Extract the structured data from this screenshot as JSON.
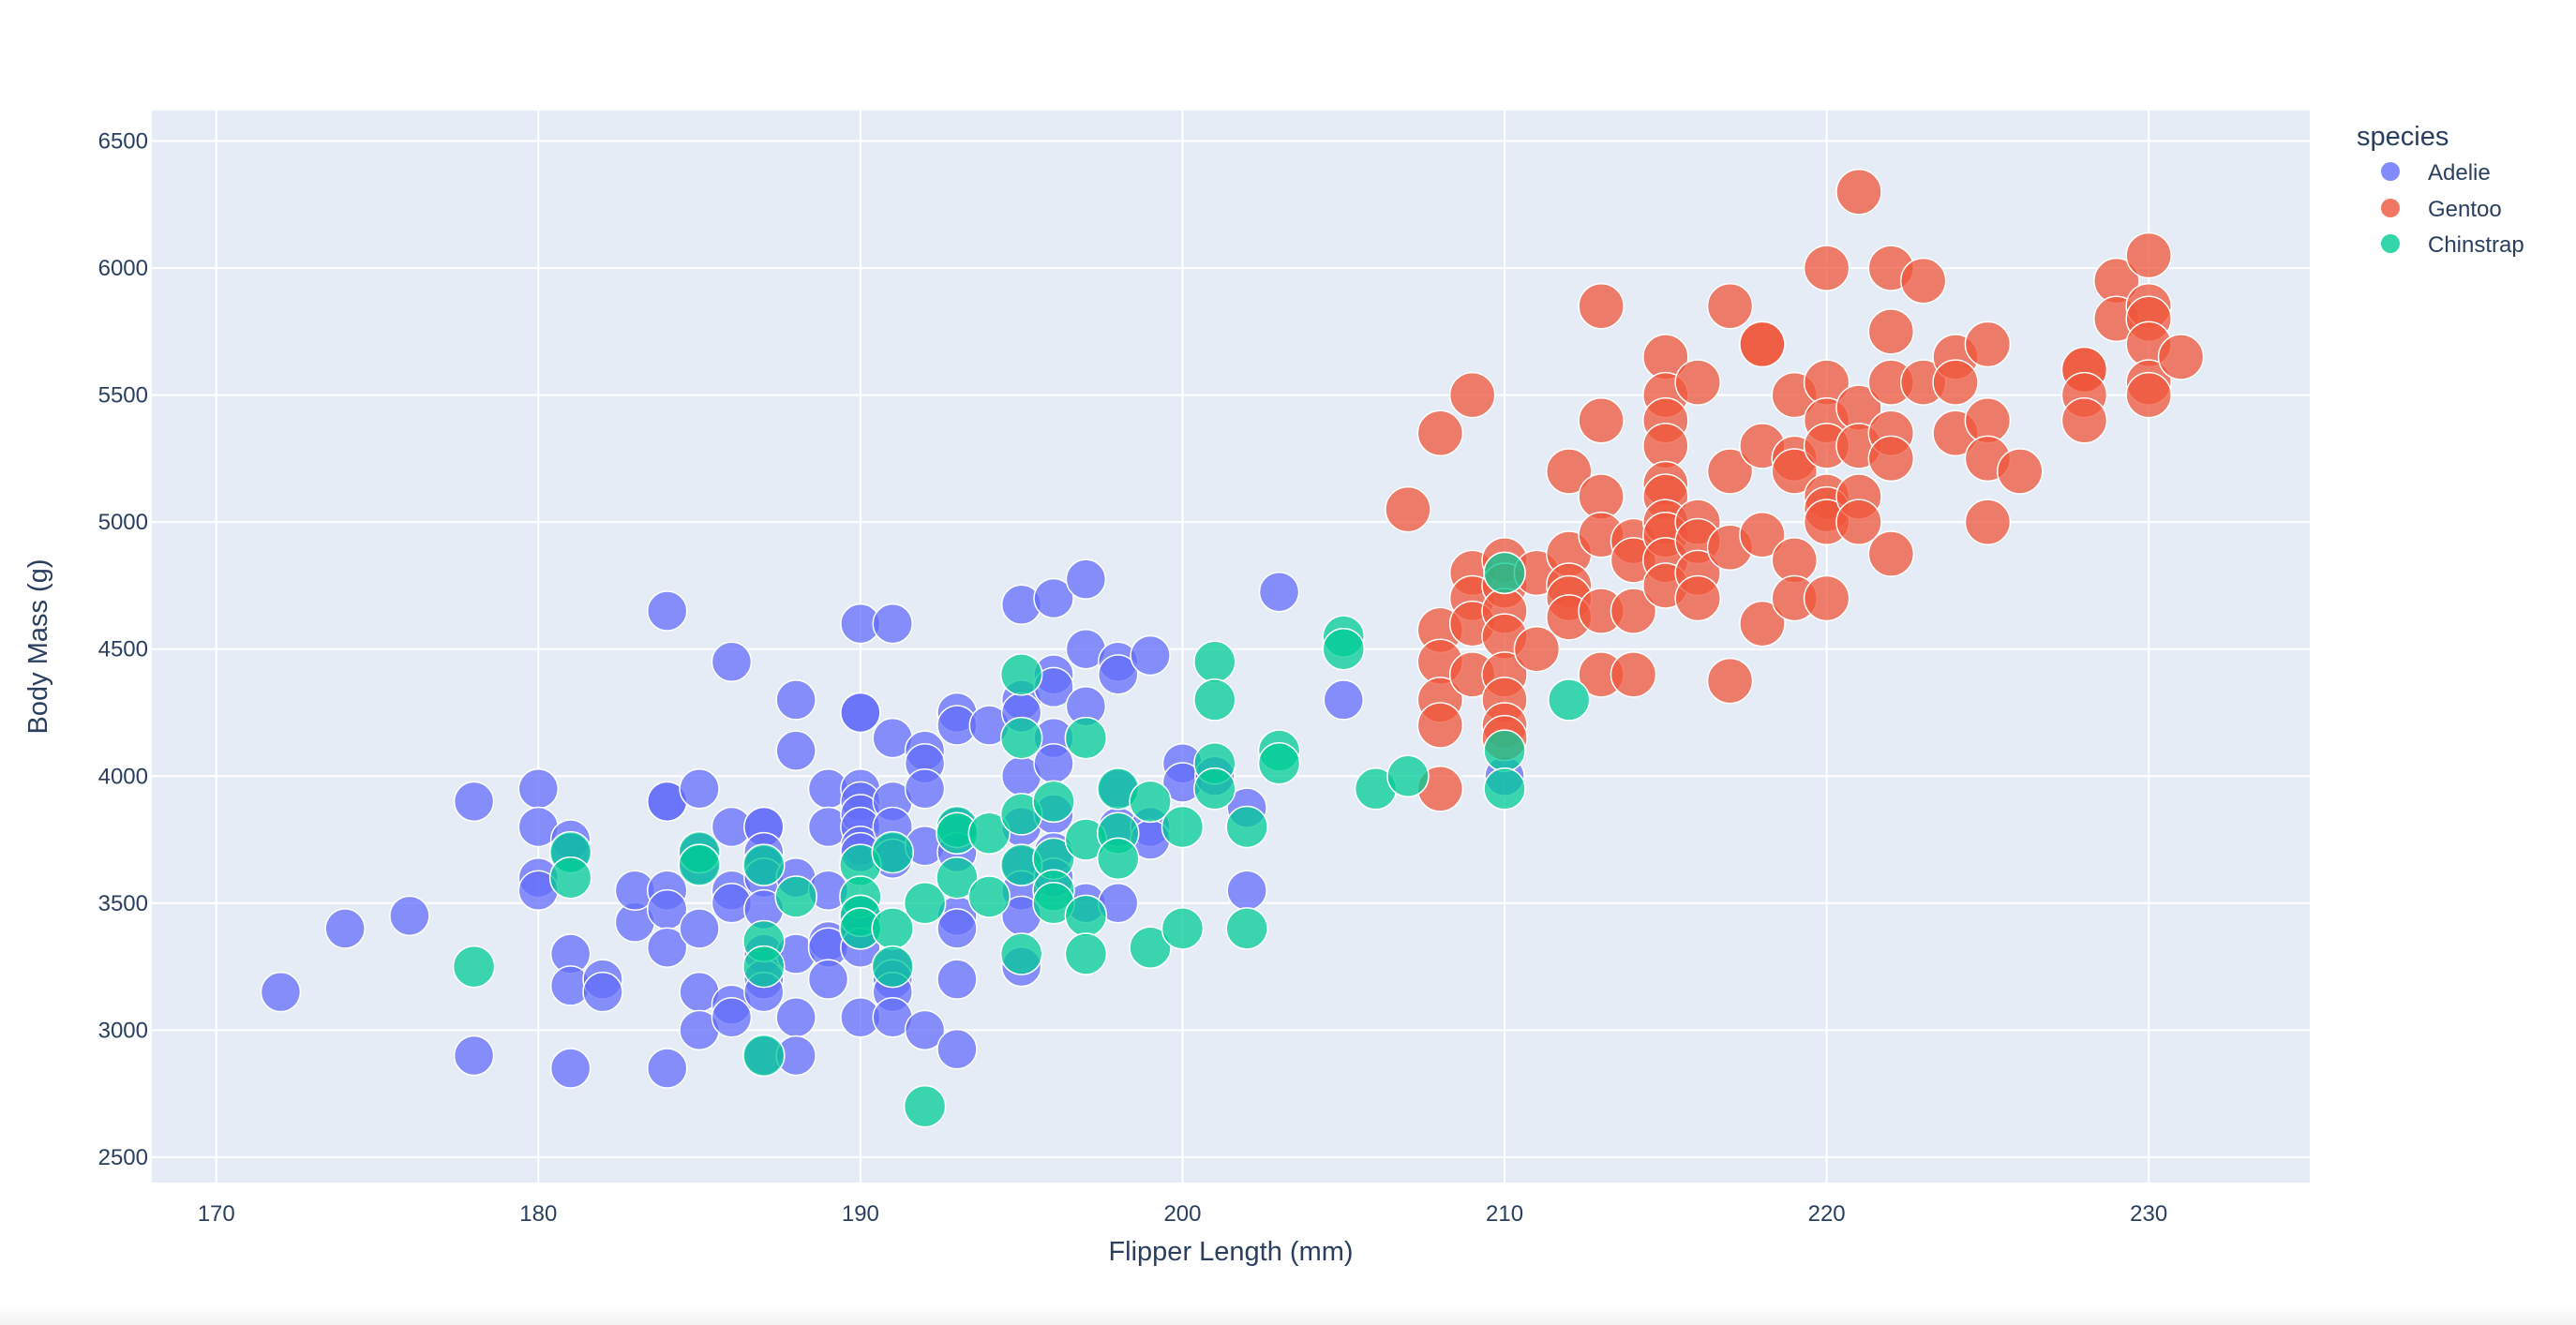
{
  "chart_data": {
    "type": "scatter",
    "title": "",
    "xlabel": "Flipper Length (mm)",
    "ylabel": "Body Mass (g)",
    "xlim": [
      168,
      235
    ],
    "ylim": [
      2400,
      6620
    ],
    "xticks": [
      "170",
      "180",
      "190",
      "200",
      "210",
      "220",
      "230"
    ],
    "yticks": [
      "2500",
      "3000",
      "3500",
      "4000",
      "4500",
      "5000",
      "5500",
      "6000",
      "6500"
    ],
    "grid": true,
    "legend": {
      "title": "species",
      "placement": "top-right outside"
    },
    "marker_size_note": "marker size varies with an additional variable; larger markers for Gentoo",
    "series": [
      {
        "name": "Adelie",
        "color": "#636efa",
        "points": [
          [
            172,
            3150
          ],
          [
            174,
            3400
          ],
          [
            176,
            3450
          ],
          [
            178,
            3900
          ],
          [
            178,
            2900
          ],
          [
            180,
            3950
          ],
          [
            180,
            3800
          ],
          [
            180,
            3600
          ],
          [
            180,
            3550
          ],
          [
            181,
            3750
          ],
          [
            181,
            3700
          ],
          [
            181,
            3300
          ],
          [
            181,
            3175
          ],
          [
            181,
            2850
          ],
          [
            182,
            3200
          ],
          [
            182,
            3150
          ],
          [
            183,
            3425
          ],
          [
            183,
            3550
          ],
          [
            184,
            4650
          ],
          [
            184,
            3900
          ],
          [
            184,
            3900
          ],
          [
            184,
            3550
          ],
          [
            184,
            3475
          ],
          [
            184,
            3325
          ],
          [
            184,
            2850
          ],
          [
            185,
            3950
          ],
          [
            185,
            3700
          ],
          [
            185,
            3650
          ],
          [
            185,
            3400
          ],
          [
            185,
            3150
          ],
          [
            185,
            3000
          ],
          [
            186,
            4450
          ],
          [
            186,
            3800
          ],
          [
            186,
            3550
          ],
          [
            186,
            3500
          ],
          [
            186,
            3100
          ],
          [
            186,
            3050
          ],
          [
            187,
            3800
          ],
          [
            187,
            3800
          ],
          [
            187,
            3700
          ],
          [
            187,
            3650
          ],
          [
            187,
            3600
          ],
          [
            187,
            3475
          ],
          [
            187,
            3300
          ],
          [
            187,
            3200
          ],
          [
            187,
            3150
          ],
          [
            187,
            2900
          ],
          [
            188,
            4300
          ],
          [
            188,
            4100
          ],
          [
            188,
            3600
          ],
          [
            188,
            3300
          ],
          [
            188,
            3050
          ],
          [
            188,
            2900
          ],
          [
            189,
            3950
          ],
          [
            189,
            3800
          ],
          [
            189,
            3550
          ],
          [
            189,
            3350
          ],
          [
            189,
            3325
          ],
          [
            189,
            3200
          ],
          [
            190,
            4600
          ],
          [
            190,
            4250
          ],
          [
            190,
            4250
          ],
          [
            190,
            3950
          ],
          [
            190,
            3900
          ],
          [
            190,
            3850
          ],
          [
            190,
            3800
          ],
          [
            190,
            3725
          ],
          [
            190,
            3700
          ],
          [
            190,
            3450
          ],
          [
            190,
            3400
          ],
          [
            190,
            3325
          ],
          [
            190,
            3050
          ],
          [
            191,
            4600
          ],
          [
            191,
            4150
          ],
          [
            191,
            3900
          ],
          [
            191,
            3800
          ],
          [
            191,
            3700
          ],
          [
            191,
            3675
          ],
          [
            191,
            3250
          ],
          [
            191,
            3200
          ],
          [
            191,
            3150
          ],
          [
            191,
            3050
          ],
          [
            192,
            4100
          ],
          [
            192,
            4050
          ],
          [
            192,
            3950
          ],
          [
            192,
            3725
          ],
          [
            192,
            3000
          ],
          [
            193,
            4250
          ],
          [
            193,
            4200
          ],
          [
            193,
            3800
          ],
          [
            193,
            3700
          ],
          [
            193,
            3450
          ],
          [
            193,
            3400
          ],
          [
            193,
            3200
          ],
          [
            193,
            2925
          ],
          [
            194,
            4200
          ],
          [
            195,
            4675
          ],
          [
            195,
            4300
          ],
          [
            195,
            4250
          ],
          [
            195,
            4000
          ],
          [
            195,
            3800
          ],
          [
            195,
            3650
          ],
          [
            195,
            3550
          ],
          [
            195,
            3450
          ],
          [
            195,
            3250
          ],
          [
            196,
            4700
          ],
          [
            196,
            4400
          ],
          [
            196,
            4350
          ],
          [
            196,
            4150
          ],
          [
            196,
            4050
          ],
          [
            196,
            3850
          ],
          [
            196,
            3700
          ],
          [
            196,
            3600
          ],
          [
            197,
            4775
          ],
          [
            197,
            4500
          ],
          [
            197,
            4275
          ],
          [
            197,
            3500
          ],
          [
            198,
            4450
          ],
          [
            198,
            4400
          ],
          [
            198,
            3950
          ],
          [
            198,
            3800
          ],
          [
            198,
            3500
          ],
          [
            199,
            4475
          ],
          [
            199,
            3800
          ],
          [
            199,
            3750
          ],
          [
            200,
            4050
          ],
          [
            200,
            3975
          ],
          [
            201,
            4000
          ],
          [
            202,
            3875
          ],
          [
            202,
            3550
          ],
          [
            203,
            4725
          ],
          [
            205,
            4300
          ],
          [
            210,
            4000
          ]
        ]
      },
      {
        "name": "Gentoo",
        "color": "#ef553b",
        "points": [
          [
            207,
            5050
          ],
          [
            208,
            5350
          ],
          [
            208,
            4575
          ],
          [
            208,
            4450
          ],
          [
            208,
            4300
          ],
          [
            208,
            4200
          ],
          [
            208,
            3950
          ],
          [
            209,
            5500
          ],
          [
            209,
            4800
          ],
          [
            209,
            4700
          ],
          [
            209,
            4600
          ],
          [
            209,
            4400
          ],
          [
            210,
            4850
          ],
          [
            210,
            4750
          ],
          [
            210,
            4650
          ],
          [
            210,
            4550
          ],
          [
            210,
            4400
          ],
          [
            210,
            4300
          ],
          [
            210,
            4200
          ],
          [
            210,
            4150
          ],
          [
            211,
            4800
          ],
          [
            211,
            4500
          ],
          [
            212,
            5200
          ],
          [
            212,
            4875
          ],
          [
            212,
            4750
          ],
          [
            212,
            4700
          ],
          [
            212,
            4625
          ],
          [
            213,
            5850
          ],
          [
            213,
            5400
          ],
          [
            213,
            5100
          ],
          [
            213,
            4950
          ],
          [
            213,
            4650
          ],
          [
            213,
            4400
          ],
          [
            214,
            4925
          ],
          [
            214,
            4850
          ],
          [
            214,
            4650
          ],
          [
            214,
            4400
          ],
          [
            215,
            5650
          ],
          [
            215,
            5500
          ],
          [
            215,
            5400
          ],
          [
            215,
            5300
          ],
          [
            215,
            5150
          ],
          [
            215,
            5100
          ],
          [
            215,
            5000
          ],
          [
            215,
            4950
          ],
          [
            215,
            4850
          ],
          [
            215,
            4750
          ],
          [
            216,
            5550
          ],
          [
            216,
            5000
          ],
          [
            216,
            4925
          ],
          [
            216,
            4800
          ],
          [
            216,
            4700
          ],
          [
            217,
            5850
          ],
          [
            217,
            5200
          ],
          [
            217,
            4900
          ],
          [
            217,
            4375
          ],
          [
            218,
            5700
          ],
          [
            218,
            5700
          ],
          [
            218,
            5300
          ],
          [
            218,
            4950
          ],
          [
            218,
            4600
          ],
          [
            219,
            5500
          ],
          [
            219,
            5250
          ],
          [
            219,
            5200
          ],
          [
            219,
            4850
          ],
          [
            219,
            4700
          ],
          [
            220,
            6000
          ],
          [
            220,
            5550
          ],
          [
            220,
            5400
          ],
          [
            220,
            5300
          ],
          [
            220,
            5100
          ],
          [
            220,
            5050
          ],
          [
            220,
            5000
          ],
          [
            220,
            4700
          ],
          [
            221,
            6300
          ],
          [
            221,
            5450
          ],
          [
            221,
            5300
          ],
          [
            221,
            5100
          ],
          [
            221,
            5000
          ],
          [
            222,
            6000
          ],
          [
            222,
            5750
          ],
          [
            222,
            5550
          ],
          [
            222,
            5350
          ],
          [
            222,
            5250
          ],
          [
            222,
            4875
          ],
          [
            223,
            5950
          ],
          [
            223,
            5550
          ],
          [
            224,
            5650
          ],
          [
            224,
            5550
          ],
          [
            224,
            5350
          ],
          [
            225,
            5700
          ],
          [
            225,
            5400
          ],
          [
            225,
            5250
          ],
          [
            225,
            5000
          ],
          [
            226,
            5200
          ],
          [
            228,
            5600
          ],
          [
            228,
            5600
          ],
          [
            228,
            5500
          ],
          [
            228,
            5400
          ],
          [
            229,
            5950
          ],
          [
            229,
            5800
          ],
          [
            230,
            6050
          ],
          [
            230,
            5850
          ],
          [
            230,
            5800
          ],
          [
            230,
            5700
          ],
          [
            230,
            5550
          ],
          [
            230,
            5500
          ],
          [
            231,
            5650
          ]
        ]
      },
      {
        "name": "Chinstrap",
        "color": "#00cc96",
        "points": [
          [
            178,
            3250
          ],
          [
            181,
            3700
          ],
          [
            181,
            3600
          ],
          [
            185,
            3700
          ],
          [
            185,
            3650
          ],
          [
            187,
            3650
          ],
          [
            187,
            3350
          ],
          [
            187,
            3250
          ],
          [
            187,
            2900
          ],
          [
            188,
            3525
          ],
          [
            190,
            3650
          ],
          [
            190,
            3525
          ],
          [
            190,
            3450
          ],
          [
            190,
            3400
          ],
          [
            191,
            3700
          ],
          [
            191,
            3400
          ],
          [
            191,
            3250
          ],
          [
            192,
            3500
          ],
          [
            192,
            2700
          ],
          [
            193,
            3800
          ],
          [
            193,
            3775
          ],
          [
            193,
            3600
          ],
          [
            194,
            3775
          ],
          [
            194,
            3525
          ],
          [
            195,
            4400
          ],
          [
            195,
            4150
          ],
          [
            195,
            3850
          ],
          [
            195,
            3650
          ],
          [
            195,
            3300
          ],
          [
            196,
            3900
          ],
          [
            196,
            3675
          ],
          [
            196,
            3550
          ],
          [
            196,
            3500
          ],
          [
            197,
            4150
          ],
          [
            197,
            3750
          ],
          [
            197,
            3450
          ],
          [
            197,
            3300
          ],
          [
            198,
            3950
          ],
          [
            198,
            3775
          ],
          [
            198,
            3675
          ],
          [
            199,
            3900
          ],
          [
            199,
            3325
          ],
          [
            200,
            3800
          ],
          [
            200,
            3400
          ],
          [
            201,
            4450
          ],
          [
            201,
            4300
          ],
          [
            201,
            4050
          ],
          [
            201,
            3950
          ],
          [
            202,
            3800
          ],
          [
            202,
            3400
          ],
          [
            203,
            4100
          ],
          [
            203,
            4050
          ],
          [
            205,
            4550
          ],
          [
            205,
            4500
          ],
          [
            206,
            3950
          ],
          [
            207,
            4000
          ],
          [
            210,
            4800
          ],
          [
            210,
            4100
          ],
          [
            210,
            3950
          ],
          [
            212,
            4300
          ]
        ]
      }
    ]
  }
}
